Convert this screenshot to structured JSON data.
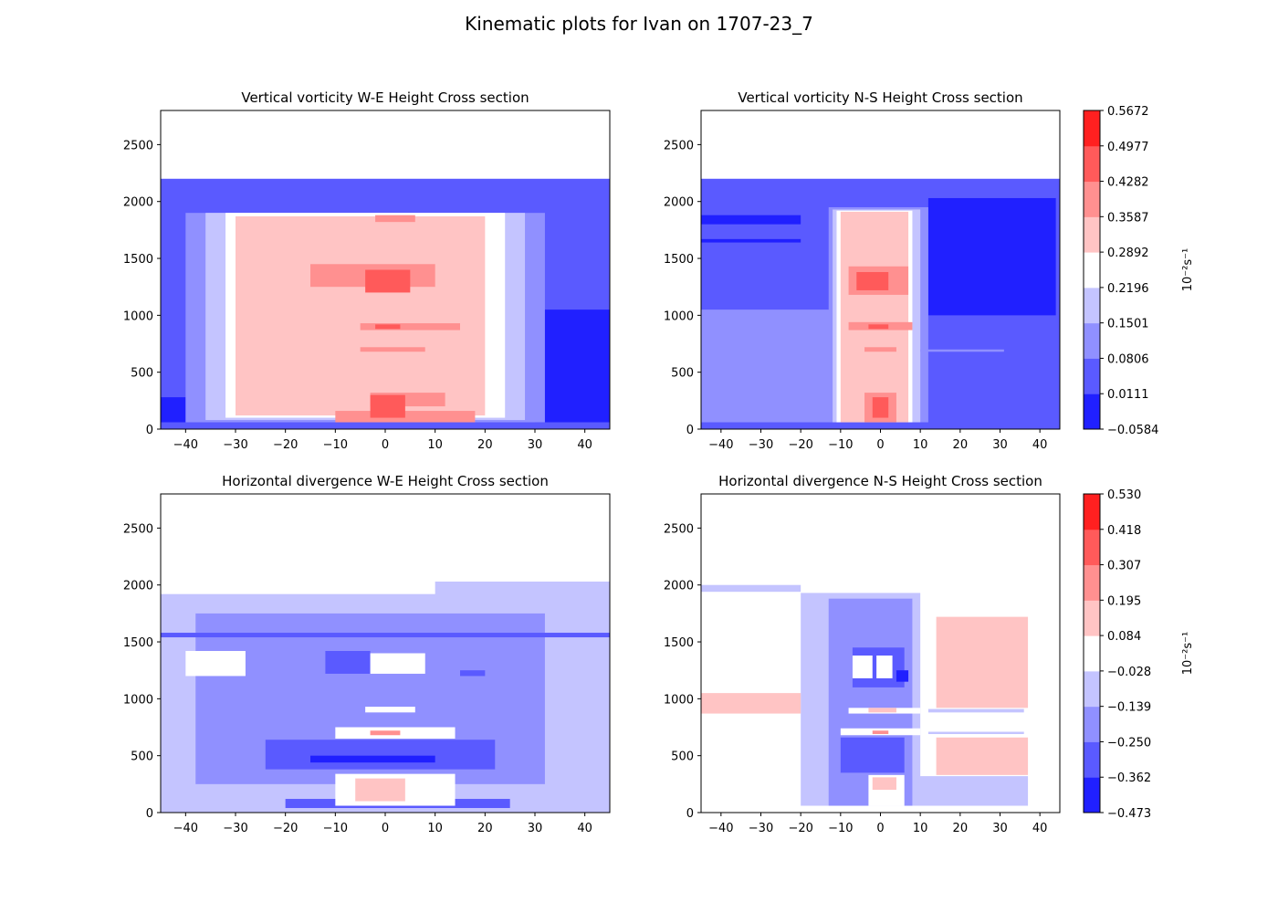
{
  "figure": {
    "suptitle": "Kinematic plots for Ivan on 1707-23_7"
  },
  "colors": {
    "blue_dark": "#2020ff",
    "blue_mid": "#5a5aff",
    "blue_light": "#9090ff",
    "blue_pale": "#c4c4ff",
    "white": "#ffffff",
    "red_pale": "#ffc4c4",
    "red_light": "#ff9090",
    "red_mid": "#ff5a5a",
    "red_dark": "#ff2020"
  },
  "chart_data": [
    {
      "type": "contour",
      "title": "Vertical vorticity W-E Height Cross section",
      "xlim": [
        -45,
        45
      ],
      "ylim": [
        0,
        2800
      ],
      "xticks": [
        "−40",
        "−30",
        "−20",
        "−10",
        "0",
        "10",
        "20",
        "30",
        "40"
      ],
      "xtick_values": [
        -40,
        -30,
        -20,
        -10,
        0,
        10,
        20,
        30,
        40
      ],
      "yticks": [
        "0",
        "500",
        "1000",
        "1500",
        "2000",
        "2500"
      ],
      "ytick_values": [
        0,
        500,
        1000,
        1500,
        2000,
        2500
      ],
      "data_top": 2200,
      "regions": [
        {
          "level": 1,
          "x": [
            -45,
            45
          ],
          "y": [
            0,
            2200
          ]
        },
        {
          "level": 0,
          "x": [
            -45,
            -40
          ],
          "y": [
            60,
            280
          ]
        },
        {
          "level": 0,
          "x": [
            30,
            45
          ],
          "y": [
            60,
            1050
          ]
        },
        {
          "level": 2,
          "x": [
            -40,
            32
          ],
          "y": [
            60,
            1900
          ]
        },
        {
          "level": 3,
          "x": [
            -36,
            28
          ],
          "y": [
            80,
            1900
          ]
        },
        {
          "level": 4,
          "x": [
            -32,
            24
          ],
          "y": [
            100,
            1900
          ]
        },
        {
          "level": 5,
          "x": [
            -30,
            20
          ],
          "y": [
            120,
            1870
          ]
        },
        {
          "level": 6,
          "x": [
            -10,
            18
          ],
          "y": [
            60,
            160
          ]
        },
        {
          "level": 6,
          "x": [
            -15,
            10
          ],
          "y": [
            1250,
            1450
          ]
        },
        {
          "level": 6,
          "x": [
            -5,
            15
          ],
          "y": [
            870,
            930
          ]
        },
        {
          "level": 6,
          "x": [
            -5,
            8
          ],
          "y": [
            680,
            720
          ]
        },
        {
          "level": 6,
          "x": [
            -3,
            12
          ],
          "y": [
            200,
            320
          ]
        },
        {
          "level": 6,
          "x": [
            -2,
            6
          ],
          "y": [
            1820,
            1880
          ]
        },
        {
          "level": 7,
          "x": [
            -4,
            5
          ],
          "y": [
            1200,
            1400
          ]
        },
        {
          "level": 7,
          "x": [
            -2,
            3
          ],
          "y": [
            880,
            920
          ]
        },
        {
          "level": 7,
          "x": [
            -3,
            4
          ],
          "y": [
            100,
            300
          ]
        }
      ],
      "colorbar": null
    },
    {
      "type": "contour",
      "title": "Vertical vorticity N-S Height Cross section",
      "xlim": [
        -45,
        45
      ],
      "ylim": [
        0,
        2800
      ],
      "xticks": [
        "−40",
        "−30",
        "−20",
        "−10",
        "0",
        "10",
        "20",
        "30",
        "40"
      ],
      "xtick_values": [
        -40,
        -30,
        -20,
        -10,
        0,
        10,
        20,
        30,
        40
      ],
      "yticks": [
        "0",
        "500",
        "1000",
        "1500",
        "2000",
        "2500"
      ],
      "ytick_values": [
        0,
        500,
        1000,
        1500,
        2000,
        2500
      ],
      "data_top": 2200,
      "regions": [
        {
          "level": 1,
          "x": [
            -45,
            45
          ],
          "y": [
            0,
            2200
          ]
        },
        {
          "level": 0,
          "x": [
            -45,
            -20
          ],
          "y": [
            1800,
            1880
          ]
        },
        {
          "level": 0,
          "x": [
            -45,
            -20
          ],
          "y": [
            1640,
            1670
          ]
        },
        {
          "level": 0,
          "x": [
            12,
            44
          ],
          "y": [
            1000,
            2030
          ]
        },
        {
          "level": 2,
          "x": [
            -45,
            10
          ],
          "y": [
            60,
            1050
          ]
        },
        {
          "level": 2,
          "x": [
            -13,
            12
          ],
          "y": [
            60,
            1950
          ]
        },
        {
          "level": 3,
          "x": [
            -12,
            10
          ],
          "y": [
            60,
            1930
          ]
        },
        {
          "level": 4,
          "x": [
            -11,
            8
          ],
          "y": [
            60,
            1920
          ]
        },
        {
          "level": 5,
          "x": [
            -10,
            7
          ],
          "y": [
            60,
            1910
          ]
        },
        {
          "level": 6,
          "x": [
            -8,
            7
          ],
          "y": [
            1180,
            1430
          ]
        },
        {
          "level": 6,
          "x": [
            -8,
            8
          ],
          "y": [
            870,
            940
          ]
        },
        {
          "level": 6,
          "x": [
            -4,
            4
          ],
          "y": [
            680,
            720
          ]
        },
        {
          "level": 6,
          "x": [
            -4,
            4
          ],
          "y": [
            60,
            320
          ]
        },
        {
          "level": 7,
          "x": [
            -6,
            2
          ],
          "y": [
            1220,
            1380
          ]
        },
        {
          "level": 7,
          "x": [
            -3,
            2
          ],
          "y": [
            880,
            920
          ]
        },
        {
          "level": 7,
          "x": [
            -2,
            2
          ],
          "y": [
            100,
            280
          ]
        },
        {
          "level": 2,
          "x": [
            10,
            31
          ],
          "y": [
            680,
            700
          ]
        }
      ],
      "colorbar": {
        "label": "10⁻²s⁻¹",
        "ticks": [
          "−0.0584",
          "0.0111",
          "0.0806",
          "0.1501",
          "0.2196",
          "0.2892",
          "0.3587",
          "0.4282",
          "0.4977",
          "0.5672"
        ]
      }
    },
    {
      "type": "contour",
      "title": "Horizontal divergence W-E Height Cross section",
      "xlim": [
        -45,
        45
      ],
      "ylim": [
        0,
        2800
      ],
      "xticks": [
        "−40",
        "−30",
        "−20",
        "−10",
        "0",
        "10",
        "20",
        "30",
        "40"
      ],
      "xtick_values": [
        -40,
        -30,
        -20,
        -10,
        0,
        10,
        20,
        30,
        40
      ],
      "yticks": [
        "0",
        "500",
        "1000",
        "1500",
        "2000",
        "2500"
      ],
      "ytick_values": [
        0,
        500,
        1000,
        1500,
        2000,
        2500
      ],
      "data_top": 2030,
      "regions": [
        {
          "level": 3,
          "x": [
            -45,
            45
          ],
          "y": [
            0,
            1920
          ]
        },
        {
          "level": 3,
          "x": [
            10,
            45
          ],
          "y": [
            1900,
            2030
          ]
        },
        {
          "level": 2,
          "x": [
            -38,
            32
          ],
          "y": [
            250,
            1750
          ]
        },
        {
          "level": 1,
          "x": [
            -24,
            22
          ],
          "y": [
            380,
            640
          ]
        },
        {
          "level": 1,
          "x": [
            -45,
            45
          ],
          "y": [
            1540,
            1580
          ]
        },
        {
          "level": 1,
          "x": [
            -12,
            -3
          ],
          "y": [
            1220,
            1420
          ]
        },
        {
          "level": 1,
          "x": [
            15,
            20
          ],
          "y": [
            1200,
            1250
          ]
        },
        {
          "level": 1,
          "x": [
            -20,
            25
          ],
          "y": [
            40,
            120
          ]
        },
        {
          "level": 0,
          "x": [
            -15,
            10
          ],
          "y": [
            440,
            500
          ]
        },
        {
          "level": 4,
          "x": [
            -40,
            -28
          ],
          "y": [
            1200,
            1420
          ]
        },
        {
          "level": 4,
          "x": [
            -3,
            8
          ],
          "y": [
            1220,
            1400
          ]
        },
        {
          "level": 4,
          "x": [
            -4,
            6
          ],
          "y": [
            880,
            930
          ]
        },
        {
          "level": 4,
          "x": [
            -10,
            14
          ],
          "y": [
            650,
            750
          ]
        },
        {
          "level": 4,
          "x": [
            -10,
            14
          ],
          "y": [
            60,
            340
          ]
        },
        {
          "level": 5,
          "x": [
            -6,
            4
          ],
          "y": [
            100,
            300
          ]
        },
        {
          "level": 6,
          "x": [
            -3,
            3
          ],
          "y": [
            680,
            720
          ]
        }
      ],
      "colorbar": null
    },
    {
      "type": "contour",
      "title": "Horizontal divergence N-S Height Cross section",
      "xlim": [
        -45,
        45
      ],
      "ylim": [
        0,
        2800
      ],
      "xticks": [
        "−40",
        "−30",
        "−20",
        "−10",
        "0",
        "10",
        "20",
        "30",
        "40"
      ],
      "xtick_values": [
        -40,
        -30,
        -20,
        -10,
        0,
        10,
        20,
        30,
        40
      ],
      "yticks": [
        "0",
        "500",
        "1000",
        "1500",
        "2000",
        "2500"
      ],
      "ytick_values": [
        0,
        500,
        1000,
        1500,
        2000,
        2500
      ],
      "data_top": 2000,
      "regions": [
        {
          "level": 4,
          "x": [
            -45,
            38
          ],
          "y": [
            0,
            2000
          ]
        },
        {
          "level": 3,
          "x": [
            -45,
            -20
          ],
          "y": [
            1940,
            2000
          ]
        },
        {
          "level": 3,
          "x": [
            -20,
            10
          ],
          "y": [
            60,
            1930
          ]
        },
        {
          "level": 3,
          "x": [
            8,
            37
          ],
          "y": [
            60,
            320
          ]
        },
        {
          "level": 2,
          "x": [
            -13,
            8
          ],
          "y": [
            60,
            1880
          ]
        },
        {
          "level": 1,
          "x": [
            -10,
            6
          ],
          "y": [
            350,
            660
          ]
        },
        {
          "level": 1,
          "x": [
            -7,
            6
          ],
          "y": [
            1100,
            1450
          ]
        },
        {
          "level": 0,
          "x": [
            4,
            7
          ],
          "y": [
            1150,
            1250
          ]
        },
        {
          "level": 4,
          "x": [
            -7,
            -2
          ],
          "y": [
            1180,
            1380
          ]
        },
        {
          "level": 4,
          "x": [
            -1,
            3
          ],
          "y": [
            1180,
            1380
          ]
        },
        {
          "level": 4,
          "x": [
            -8,
            10
          ],
          "y": [
            870,
            920
          ]
        },
        {
          "level": 4,
          "x": [
            -10,
            10
          ],
          "y": [
            680,
            740
          ]
        },
        {
          "level": 4,
          "x": [
            -3,
            6
          ],
          "y": [
            60,
            330
          ]
        },
        {
          "level": 5,
          "x": [
            -45,
            -20
          ],
          "y": [
            870,
            1050
          ]
        },
        {
          "level": 5,
          "x": [
            14,
            37
          ],
          "y": [
            330,
            660
          ]
        },
        {
          "level": 5,
          "x": [
            14,
            37
          ],
          "y": [
            920,
            1720
          ]
        },
        {
          "level": 5,
          "x": [
            -2,
            4
          ],
          "y": [
            200,
            310
          ]
        },
        {
          "level": 5,
          "x": [
            -3,
            4
          ],
          "y": [
            880,
            920
          ]
        },
        {
          "level": 6,
          "x": [
            -2,
            2
          ],
          "y": [
            690,
            720
          ]
        },
        {
          "level": 3,
          "x": [
            12,
            36
          ],
          "y": [
            690,
            710
          ]
        },
        {
          "level": 3,
          "x": [
            12,
            36
          ],
          "y": [
            880,
            910
          ]
        }
      ],
      "colorbar": {
        "label": "10⁻²s⁻¹",
        "ticks": [
          "−0.473",
          "−0.362",
          "−0.250",
          "−0.139",
          "−0.028",
          "0.084",
          "0.195",
          "0.307",
          "0.418",
          "0.530"
        ]
      }
    }
  ]
}
